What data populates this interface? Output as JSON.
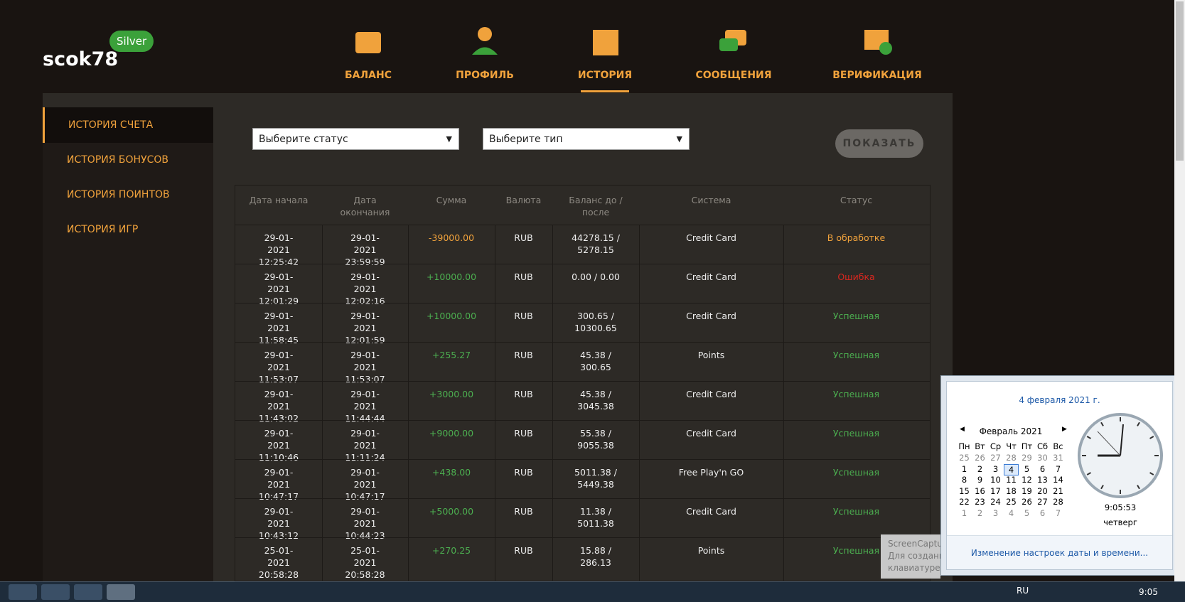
{
  "user": {
    "name": "scok78",
    "badge": "Silver"
  },
  "nav": [
    "БАЛАНС",
    "ПРОФИЛЬ",
    "ИСТОРИЯ",
    "СООБЩЕНИЯ",
    "ВЕРИФИКАЦИЯ"
  ],
  "active_nav": 2,
  "sidebar": [
    "ИСТОРИЯ СЧЕТА",
    "ИСТОРИЯ БОНУСОВ",
    "ИСТОРИЯ ПОИНТОВ",
    "ИСТОРИЯ ИГР"
  ],
  "filters": {
    "status": "Выберите статус",
    "type": "Выберите тип",
    "button": "ПОКАЗАТЬ"
  },
  "table": {
    "headers": [
      "Дата начала",
      "Дата окончания",
      "Сумма",
      "Валюта",
      "Баланс до / после",
      "Система",
      "Статус"
    ],
    "rows": [
      {
        "cells": [
          "29-01-2021 12:25:42",
          "29-01-2021 23:59:59",
          "-39000.00",
          "RUB",
          "44278.15 / 5278.15",
          "Credit Card",
          "В обработке"
        ],
        "sum_color": "#f0a23c",
        "status_color": "#f0a23c"
      },
      {
        "cells": [
          "29-01-2021 12:01:29",
          "29-01-2021 12:02:16",
          "+10000.00",
          "RUB",
          "0.00 / 0.00",
          "Credit Card",
          "Ошибка"
        ],
        "sum_color": "#4caf50",
        "status_color": "#d9271f"
      },
      {
        "cells": [
          "29-01-2021 11:58:45",
          "29-01-2021 12:01:59",
          "+10000.00",
          "RUB",
          "300.65 / 10300.65",
          "Credit Card",
          "Успешная"
        ],
        "sum_color": "#4caf50",
        "status_color": "#4caf50"
      },
      {
        "cells": [
          "29-01-2021 11:53:07",
          "29-01-2021 11:53:07",
          "+255.27",
          "RUB",
          "45.38 / 300.65",
          "Points",
          "Успешная"
        ],
        "sum_color": "#4caf50",
        "status_color": "#4caf50"
      },
      {
        "cells": [
          "29-01-2021 11:43:02",
          "29-01-2021 11:44:44",
          "+3000.00",
          "RUB",
          "45.38 / 3045.38",
          "Credit Card",
          "Успешная"
        ],
        "sum_color": "#4caf50",
        "status_color": "#4caf50"
      },
      {
        "cells": [
          "29-01-2021 11:10:46",
          "29-01-2021 11:11:24",
          "+9000.00",
          "RUB",
          "55.38 / 9055.38",
          "Credit Card",
          "Успешная"
        ],
        "sum_color": "#4caf50",
        "status_color": "#4caf50"
      },
      {
        "cells": [
          "29-01-2021 10:47:17",
          "29-01-2021 10:47:17",
          "+438.00",
          "RUB",
          "5011.38 / 5449.38",
          "Free Play'n GO",
          "Успешная"
        ],
        "sum_color": "#4caf50",
        "status_color": "#4caf50"
      },
      {
        "cells": [
          "29-01-2021 10:43:12",
          "29-01-2021 10:44:23",
          "+5000.00",
          "RUB",
          "11.38 / 5011.38",
          "Credit Card",
          "Успешная"
        ],
        "sum_color": "#4caf50",
        "status_color": "#4caf50"
      },
      {
        "cells": [
          "25-01-2021 20:58:28",
          "25-01-2021 20:58:28",
          "+270.25",
          "RUB",
          "15.88 / 286.13",
          "Points",
          "Успешная"
        ],
        "sum_color": "#4caf50",
        "status_color": "#4caf50"
      }
    ]
  },
  "calendar": {
    "date": "4 февраля 2021 г.",
    "month": "Февраль 2021",
    "weekdays": [
      "Пн",
      "Вт",
      "Ср",
      "Чт",
      "Пт",
      "Сб",
      "Вс"
    ],
    "weeks": [
      [
        25,
        26,
        27,
        28,
        29,
        30,
        31
      ],
      [
        1,
        2,
        3,
        4,
        5,
        6,
        7
      ],
      [
        8,
        9,
        10,
        11,
        12,
        13,
        14
      ],
      [
        15,
        16,
        17,
        18,
        19,
        20,
        21
      ],
      [
        22,
        23,
        24,
        25,
        26,
        27,
        28
      ],
      [
        1,
        2,
        3,
        4,
        5,
        6,
        7
      ]
    ],
    "time": "9:05:53",
    "weekday": "четверг",
    "link": "Изменение настроек даты и времени..."
  },
  "tooltip": [
    "ScreenCaptur",
    "Для создани",
    "клавиатуре и"
  ],
  "taskbar": {
    "lang": "RU",
    "time": "9:05"
  }
}
